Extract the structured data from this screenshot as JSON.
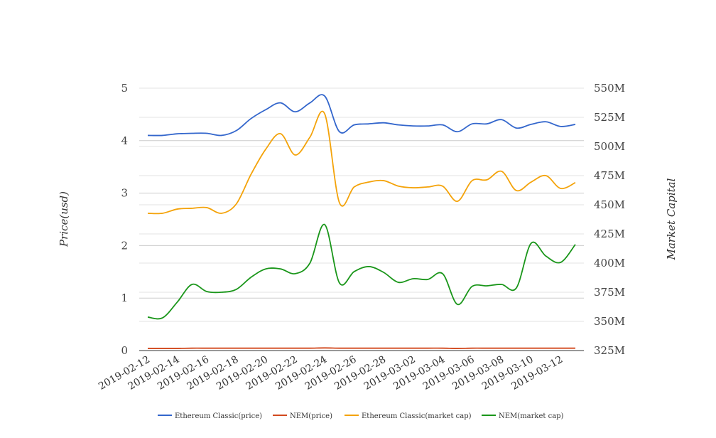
{
  "chart_data": {
    "type": "line",
    "title": "",
    "ylabel_left": "Price(usd)",
    "ylabel_right": "Market Capital",
    "ylim_left": [
      0,
      5
    ],
    "ylim_right": [
      325,
      550
    ],
    "left_ticks": [
      "0",
      "1",
      "2",
      "3",
      "4",
      "5"
    ],
    "right_ticks": [
      "325M",
      "350M",
      "375M",
      "400M",
      "425M",
      "450M",
      "475M",
      "500M",
      "525M",
      "550M"
    ],
    "grid": true,
    "legend_position": "bottom",
    "x": [
      "2019-02-12",
      "2019-02-13",
      "2019-02-14",
      "2019-02-15",
      "2019-02-16",
      "2019-02-17",
      "2019-02-18",
      "2019-02-19",
      "2019-02-20",
      "2019-02-21",
      "2019-02-22",
      "2019-02-23",
      "2019-02-24",
      "2019-02-25",
      "2019-02-26",
      "2019-02-27",
      "2019-02-28",
      "2019-03-01",
      "2019-03-02",
      "2019-03-03",
      "2019-03-04",
      "2019-03-05",
      "2019-03-06",
      "2019-03-07",
      "2019-03-08",
      "2019-03-09",
      "2019-03-10",
      "2019-03-11",
      "2019-03-12",
      "2019-03-13"
    ],
    "x_tick_labels": [
      "2019-02-12",
      "2019-02-14",
      "2019-02-16",
      "2019-02-18",
      "2019-02-20",
      "2019-02-22",
      "2019-02-24",
      "2019-02-26",
      "2019-02-28",
      "2019-03-02",
      "2019-03-04",
      "2019-03-06",
      "2019-03-08",
      "2019-03-10",
      "2019-03-12"
    ],
    "series": [
      {
        "name": "Ethereum Classic(price)",
        "axis": "left",
        "color": "#3366cc",
        "values": [
          4.1,
          4.1,
          4.13,
          4.14,
          4.14,
          4.1,
          4.19,
          4.42,
          4.59,
          4.72,
          4.55,
          4.72,
          4.85,
          4.17,
          4.3,
          4.32,
          4.34,
          4.3,
          4.28,
          4.28,
          4.3,
          4.17,
          4.32,
          4.32,
          4.4,
          4.24,
          4.31,
          4.36,
          4.27,
          4.31
        ]
      },
      {
        "name": "NEM(price)",
        "axis": "left",
        "color": "#d2491e",
        "values": [
          0.04,
          0.04,
          0.04,
          0.045,
          0.045,
          0.045,
          0.045,
          0.045,
          0.045,
          0.045,
          0.045,
          0.045,
          0.05,
          0.045,
          0.045,
          0.045,
          0.045,
          0.045,
          0.045,
          0.045,
          0.045,
          0.04,
          0.045,
          0.045,
          0.045,
          0.045,
          0.045,
          0.045,
          0.045,
          0.045
        ]
      },
      {
        "name": "Ethereum Classic(market cap)",
        "axis": "right",
        "color": "#f4a30a",
        "values": [
          442.7,
          442.7,
          446.3,
          447,
          447.6,
          442.7,
          450.6,
          476,
          497.6,
          511,
          492.7,
          508,
          528,
          451.8,
          465.3,
          469.5,
          470.7,
          466,
          464.6,
          465.3,
          466,
          453,
          470.7,
          471.4,
          478.7,
          462.2,
          469.5,
          475,
          464,
          469
        ]
      },
      {
        "name": "NEM(market cap)",
        "axis": "right",
        "color": "#1a961a",
        "values": [
          353.7,
          353,
          366.5,
          381.7,
          375.6,
          375,
          377.4,
          387.8,
          395,
          395,
          390.9,
          400,
          433,
          383,
          392.7,
          397,
          392,
          383.5,
          386.6,
          386,
          390.9,
          364.6,
          380,
          380.5,
          381.7,
          378.7,
          417,
          406,
          400.6,
          416
        ]
      }
    ]
  }
}
